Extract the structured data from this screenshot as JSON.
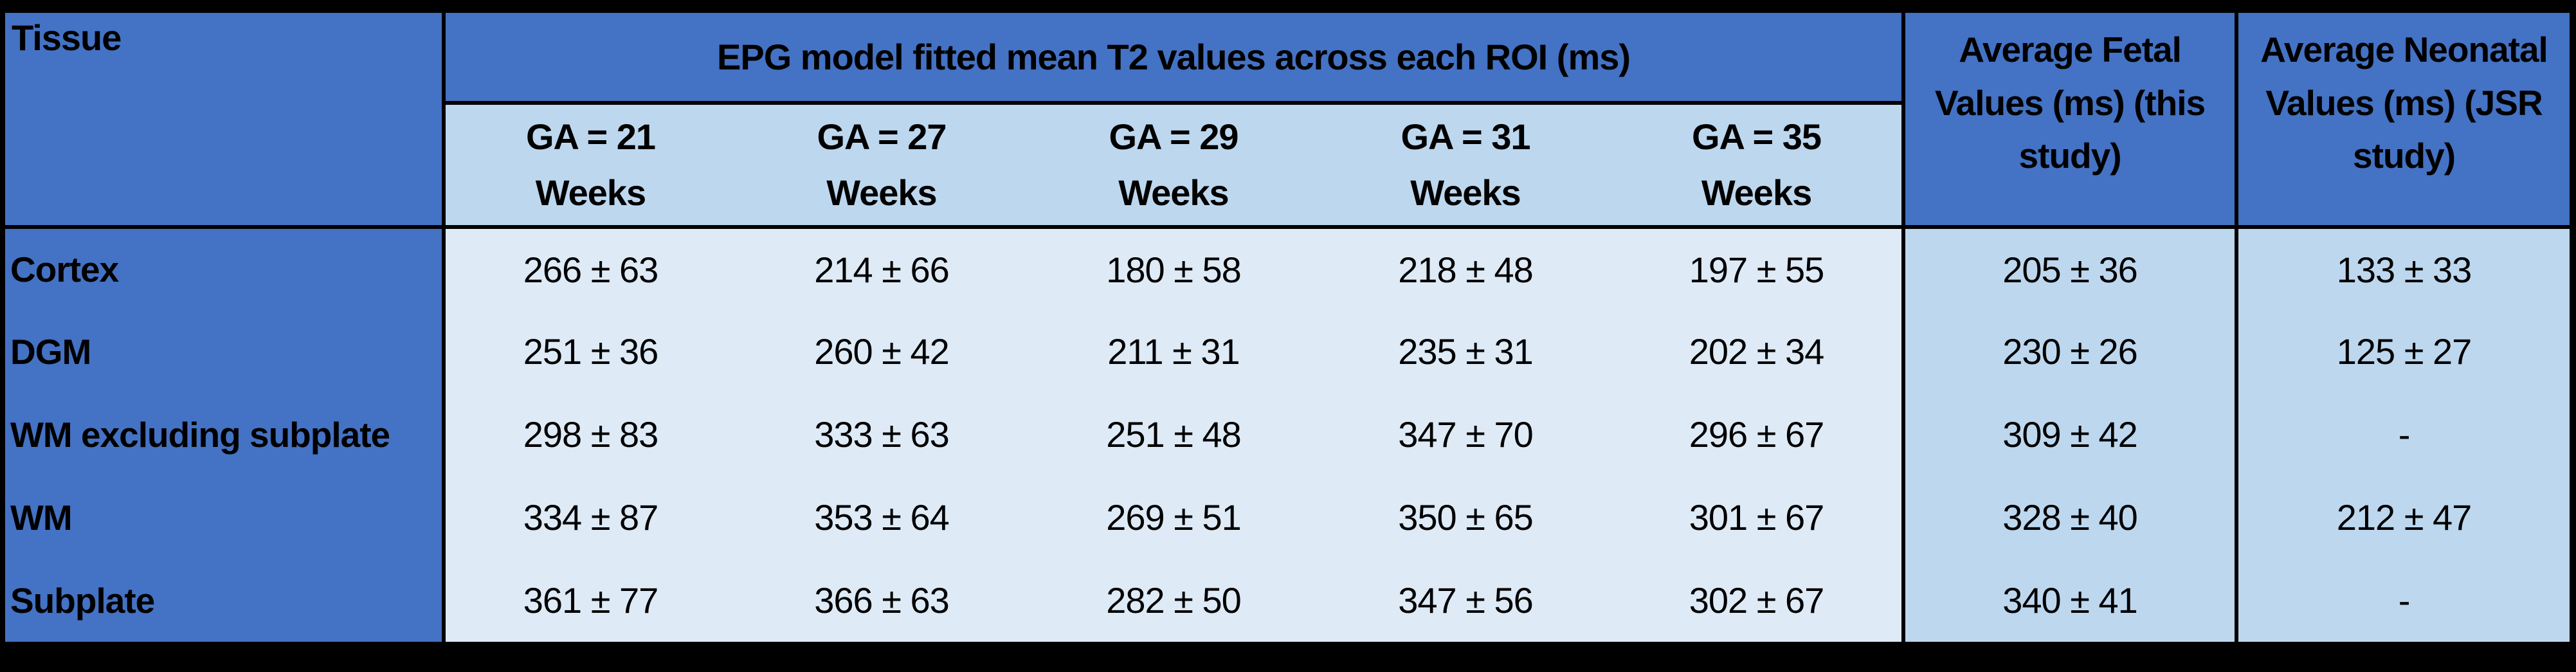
{
  "table": {
    "title_note": "EPG model fitted mean T2 values table",
    "header": {
      "tissue_label": "Tissue",
      "epg_title": "EPG model fitted mean T2 values across each ROI (ms)",
      "ga_columns": [
        {
          "ga": "GA = 21",
          "unit": "Weeks"
        },
        {
          "ga": "GA = 27",
          "unit": "Weeks"
        },
        {
          "ga": "GA = 29",
          "unit": "Weeks"
        },
        {
          "ga": "GA = 31",
          "unit": "Weeks"
        },
        {
          "ga": "GA = 35",
          "unit": "Weeks"
        }
      ],
      "avg_fetal_label": "Average Fetal Values (ms) (this study)",
      "avg_neonatal_label": "Average Neonatal Values (ms) (JSR study)"
    },
    "rows": [
      {
        "tissue": "Cortex",
        "values": [
          "266 ± 63",
          "214 ± 66",
          "180 ± 58",
          "218 ± 48",
          "197 ± 55"
        ],
        "avg_fetal": "205 ± 36",
        "avg_neonatal": "133 ± 33"
      },
      {
        "tissue": "DGM",
        "values": [
          "251 ± 36",
          "260 ± 42",
          "211 ± 31",
          "235 ± 31",
          "202 ± 34"
        ],
        "avg_fetal": "230 ± 26",
        "avg_neonatal": "125 ± 27"
      },
      {
        "tissue": "WM excluding subplate",
        "values": [
          "298 ± 83",
          "333 ± 63",
          "251 ± 48",
          "347 ± 70",
          "296 ± 67"
        ],
        "avg_fetal": "309 ± 42",
        "avg_neonatal": "-"
      },
      {
        "tissue": "WM",
        "values": [
          "334 ± 87",
          "353 ± 64",
          "269 ± 51",
          "350 ± 65",
          "301 ± 67"
        ],
        "avg_fetal": "328 ± 40",
        "avg_neonatal": "212 ± 47"
      },
      {
        "tissue": "Subplate",
        "values": [
          "361 ± 77",
          "366 ± 63",
          "282 ± 50",
          "347 ± 56",
          "302 ± 67"
        ],
        "avg_fetal": "340 ± 41",
        "avg_neonatal": "-"
      }
    ],
    "colors": {
      "header_blue": "#4472C4",
      "subheader_blue": "#BDD7EE",
      "body_blue": "#DEEAF6",
      "frame_black": "#000000"
    }
  }
}
